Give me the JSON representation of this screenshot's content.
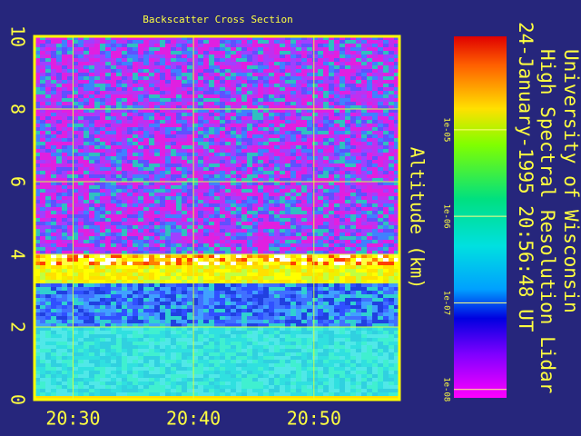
{
  "chart_data": {
    "type": "heatmap",
    "title": "Backscatter Cross Section",
    "ylabel": "Altitude (km)",
    "xlim": [
      1226.8,
      1257.1
    ],
    "xticks": [
      {
        "value": 1230,
        "label": "20:30"
      },
      {
        "value": 1240,
        "label": "20:40"
      },
      {
        "value": 1250,
        "label": "20:50"
      }
    ],
    "ylim": [
      0,
      10
    ],
    "yticks": [
      0,
      2,
      4,
      6,
      8,
      10
    ],
    "grid": true,
    "colorbar": {
      "log": true,
      "clim": [
        8e-09,
        0.00012
      ],
      "ticks": [
        {
          "value": 1e-05,
          "label": "1e-05"
        },
        {
          "value": 1e-06,
          "label": "1e-06"
        },
        {
          "value": 1e-07,
          "label": "1e-07"
        },
        {
          "value": 1e-08,
          "label": "1e-08"
        }
      ]
    },
    "side_text": [
      "University of Wisconsin",
      "High Spectral Resolution Lidar",
      "24-January-1995 20:56:48 UT"
    ]
  }
}
